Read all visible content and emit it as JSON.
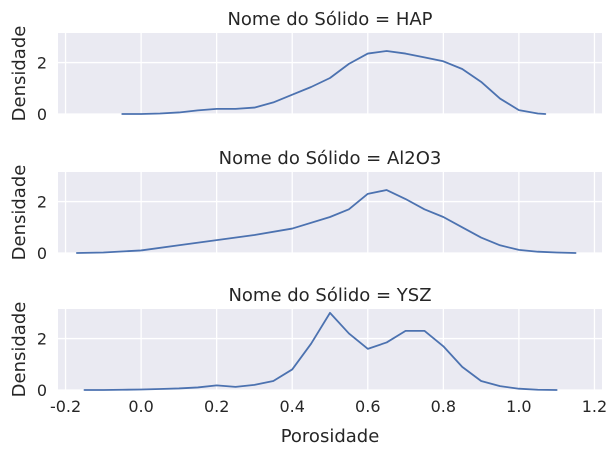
{
  "chart_data": {
    "type": "line",
    "xlabel": "Porosidade",
    "ylabel": "Densidade",
    "xlim": [
      -0.22,
      1.22
    ],
    "ylim": [
      0,
      3.15
    ],
    "x_ticks": [
      "-0.2",
      "0.0",
      "0.2",
      "0.4",
      "0.6",
      "0.8",
      "1.0",
      "1.2"
    ],
    "x_tick_values": [
      -0.2,
      0.0,
      0.2,
      0.4,
      0.6,
      0.8,
      1.0,
      1.2
    ],
    "y_ticks": [
      "0",
      "2"
    ],
    "y_tick_values": [
      0,
      2
    ],
    "grid": true,
    "line_color": "#4c72b0",
    "background_color": "#eaeaf2",
    "panels": [
      {
        "title": "Nome do Sólido = HAP",
        "x": [
          -0.05,
          0.0,
          0.05,
          0.1,
          0.15,
          0.2,
          0.25,
          0.3,
          0.35,
          0.4,
          0.45,
          0.5,
          0.55,
          0.6,
          0.65,
          0.7,
          0.75,
          0.8,
          0.85,
          0.9,
          0.95,
          1.0,
          1.05,
          1.07
        ],
        "y": [
          0.0,
          0.0,
          0.02,
          0.06,
          0.14,
          0.2,
          0.2,
          0.25,
          0.45,
          0.75,
          1.05,
          1.4,
          1.95,
          2.35,
          2.45,
          2.35,
          2.2,
          2.05,
          1.75,
          1.25,
          0.6,
          0.15,
          0.02,
          0.0
        ]
      },
      {
        "title": "Nome do Sólido = Al2O3",
        "x": [
          -0.17,
          -0.1,
          0.0,
          0.1,
          0.2,
          0.3,
          0.4,
          0.5,
          0.55,
          0.6,
          0.65,
          0.7,
          0.75,
          0.8,
          0.85,
          0.9,
          0.95,
          1.0,
          1.05,
          1.1,
          1.15
        ],
        "y": [
          0.0,
          0.02,
          0.1,
          0.3,
          0.5,
          0.7,
          0.95,
          1.4,
          1.7,
          2.3,
          2.45,
          2.1,
          1.7,
          1.4,
          1.0,
          0.6,
          0.3,
          0.12,
          0.05,
          0.02,
          0.0
        ]
      },
      {
        "title": "Nome do Sólido = YSZ",
        "x": [
          -0.15,
          -0.1,
          -0.05,
          0.0,
          0.05,
          0.1,
          0.15,
          0.2,
          0.25,
          0.3,
          0.35,
          0.4,
          0.45,
          0.5,
          0.55,
          0.6,
          0.65,
          0.7,
          0.75,
          0.8,
          0.85,
          0.9,
          0.95,
          1.0,
          1.05,
          1.1
        ],
        "y": [
          0.0,
          0.0,
          0.01,
          0.02,
          0.04,
          0.06,
          0.1,
          0.18,
          0.12,
          0.2,
          0.35,
          0.8,
          1.8,
          3.0,
          2.2,
          1.6,
          1.85,
          2.3,
          2.3,
          1.7,
          0.9,
          0.35,
          0.15,
          0.05,
          0.01,
          0.0
        ]
      }
    ]
  }
}
